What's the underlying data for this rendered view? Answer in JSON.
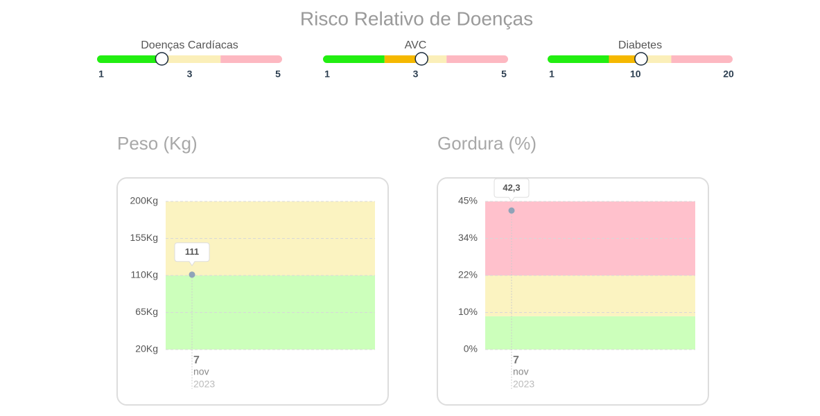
{
  "title": "Risco Relativo de Doenças",
  "risk_gauges": [
    {
      "label": "Doenças Cardíacas",
      "range": [
        1,
        5
      ],
      "ticks": [
        1,
        3,
        5
      ],
      "value": 2.4,
      "bands": [
        {
          "color": "#22ee11",
          "from": 1,
          "to": 2.5
        },
        {
          "color": "#fbefb9",
          "from": 2.5,
          "to": 3.67
        },
        {
          "color": "#fdb8c1",
          "from": 3.67,
          "to": 5
        }
      ]
    },
    {
      "label": "AVC",
      "range": [
        1,
        5
      ],
      "ticks": [
        1,
        3,
        5
      ],
      "value": 3.13,
      "bands": [
        {
          "color": "#22ee11",
          "from": 1,
          "to": 2.33
        },
        {
          "color": "#f5b800",
          "from": 2.33,
          "to": 3
        },
        {
          "color": "#fbefb9",
          "from": 3,
          "to": 3.67
        },
        {
          "color": "#fdb8c1",
          "from": 3.67,
          "to": 5
        }
      ]
    },
    {
      "label": "Diabetes",
      "range": [
        1,
        20
      ],
      "ticks": [
        1,
        10,
        20
      ],
      "value": 10.6,
      "bands": [
        {
          "color": "#22ee11",
          "from": 1,
          "to": 7.3
        },
        {
          "color": "#f5b800",
          "from": 7.3,
          "to": 10.1
        },
        {
          "color": "#fbefb9",
          "from": 10.1,
          "to": 13.7
        },
        {
          "color": "#fdb8c1",
          "from": 13.7,
          "to": 20
        }
      ]
    }
  ],
  "chart_data": [
    {
      "type": "scatter",
      "title": "Peso (Kg)",
      "categories": [
        "7"
      ],
      "category_months": [
        "nov"
      ],
      "category_years": [
        "2023"
      ],
      "values": [
        111
      ],
      "color": "#8fa3b8",
      "ylim": [
        20,
        200
      ],
      "yticks": [
        {
          "value": 20,
          "label": "20Kg"
        },
        {
          "value": 65,
          "label": "65Kg"
        },
        {
          "value": 110,
          "label": "110Kg"
        },
        {
          "value": 155,
          "label": "155Kg"
        },
        {
          "value": 200,
          "label": "200Kg"
        }
      ],
      "bands": [
        {
          "color": "#ccffbb",
          "from": 20,
          "to": 110
        },
        {
          "color": "#fbf3c1",
          "from": 110,
          "to": 200
        }
      ],
      "grid": true
    },
    {
      "type": "scatter",
      "title": "Gordura (%)",
      "categories": [
        "7"
      ],
      "category_months": [
        "nov"
      ],
      "category_years": [
        "2023"
      ],
      "values": [
        42.3
      ],
      "value_labels": [
        "42,3"
      ],
      "color": "#8fa3b8",
      "ylim": [
        0,
        45
      ],
      "yticks": [
        {
          "value": 0,
          "label": "0%"
        },
        {
          "value": 10,
          "label": "10%"
        },
        {
          "value": 22,
          "label": "22%"
        },
        {
          "value": 34,
          "label": "34%"
        },
        {
          "value": 45,
          "label": "45%"
        }
      ],
      "bands": [
        {
          "color": "#ccffbb",
          "from": 0,
          "to": 9
        },
        {
          "color": "#fbf3c1",
          "from": 9,
          "to": 22
        },
        {
          "color": "#ffc1cc",
          "from": 22,
          "to": 45
        }
      ],
      "grid": true
    }
  ]
}
